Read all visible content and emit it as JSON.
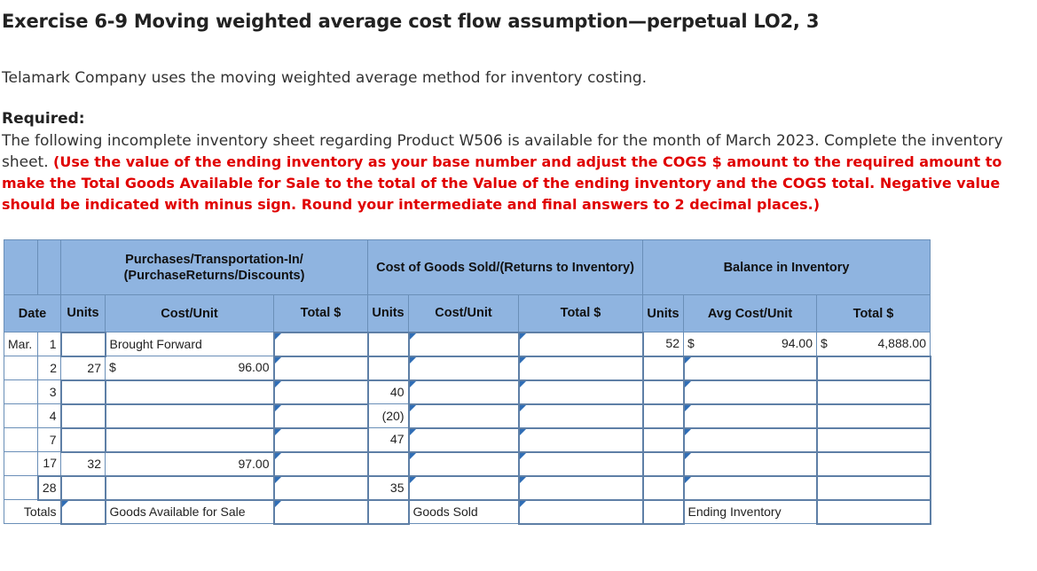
{
  "title": "Exercise 6-9 Moving weighted average cost flow assumption—perpetual LO2, 3",
  "intro": "Telamark Company uses the moving weighted average method for inventory costing.",
  "required_label": "Required:",
  "required_text": "The following incomplete inventory sheet regarding Product W506 is available for the month of March 2023. Complete the inventory sheet.",
  "required_instruction": "(Use the value of the ending inventory as your base number and adjust the COGS $ amount to the required amount to make the Total Goods Available for Sale to the total of the Value of the ending inventory and the COGS total. Negative value should be indicated with minus sign. Round your intermediate and final answers to 2 decimal places.)",
  "table": {
    "group_headers": {
      "purchases": "Purchases/Transportation-In/ (PurchaseReturns/Discounts)",
      "cogs": "Cost of Goods Sold/(Returns to Inventory)",
      "balance": "Balance in Inventory"
    },
    "column_headers": {
      "date": "Date",
      "p_units": "Units",
      "p_cost": "Cost/Unit",
      "p_total": "Total $",
      "c_units": "Units",
      "c_cost": "Cost/Unit",
      "c_total": "Total $",
      "b_units": "Units",
      "b_avg": "Avg Cost/Unit",
      "b_total": "Total $"
    },
    "rows": [
      {
        "month": "Mar.",
        "day": "1",
        "p_units": "",
        "p_cost_label": "Brought Forward",
        "c_units": "",
        "b_units": "52",
        "b_avg_dollar": "$",
        "b_avg": "94.00",
        "b_total_dollar": "$",
        "b_total": "4,888.00"
      },
      {
        "month": "",
        "day": "2",
        "p_units": "27",
        "p_cost_dollar": "$",
        "p_cost": "96.00",
        "c_units": ""
      },
      {
        "month": "",
        "day": "3",
        "p_units": "",
        "p_cost": "",
        "c_units": "40"
      },
      {
        "month": "",
        "day": "4",
        "p_units": "",
        "p_cost": "",
        "c_units": "(20)"
      },
      {
        "month": "",
        "day": "7",
        "p_units": "",
        "p_cost": "",
        "c_units": "47"
      },
      {
        "month": "",
        "day": "17",
        "p_units": "32",
        "p_cost": "97.00",
        "c_units": ""
      },
      {
        "month": "",
        "day": "28",
        "p_units": "",
        "p_cost": "",
        "c_units": "35"
      }
    ],
    "totals": {
      "label": "Totals",
      "goods_available": "Goods Available for Sale",
      "goods_sold": "Goods Sold",
      "ending_inventory": "Ending Inventory"
    }
  }
}
